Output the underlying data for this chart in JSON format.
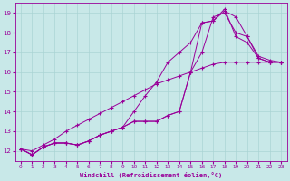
{
  "xlabel": "Windchill (Refroidissement éolien,°C)",
  "xlim": [
    -0.5,
    23.5
  ],
  "ylim": [
    11.5,
    19.5
  ],
  "xticks": [
    0,
    1,
    2,
    3,
    4,
    5,
    6,
    7,
    8,
    9,
    10,
    11,
    12,
    13,
    14,
    15,
    16,
    17,
    18,
    19,
    20,
    21,
    22,
    23
  ],
  "yticks": [
    12,
    13,
    14,
    15,
    16,
    17,
    18,
    19
  ],
  "bg_color": "#c8e8e8",
  "grid_color": "#aad4d4",
  "line_color": "#990099",
  "lines": [
    {
      "x": [
        0,
        1,
        2,
        3,
        4,
        5,
        6,
        7,
        8,
        9,
        10,
        11,
        12,
        13,
        14,
        15,
        16,
        17,
        18,
        19,
        20,
        21,
        22,
        23
      ],
      "y": [
        12.1,
        11.8,
        12.2,
        12.4,
        12.4,
        12.3,
        12.5,
        12.8,
        13.0,
        13.2,
        13.5,
        13.5,
        13.5,
        13.8,
        14.0,
        16.0,
        18.5,
        18.6,
        19.1,
        18.8,
        17.8,
        16.7,
        16.5,
        16.5
      ]
    },
    {
      "x": [
        0,
        1,
        2,
        3,
        4,
        5,
        6,
        7,
        8,
        9,
        10,
        11,
        12,
        13,
        14,
        15,
        16,
        17,
        18,
        19,
        20,
        21,
        22,
        23
      ],
      "y": [
        12.1,
        11.8,
        12.2,
        12.4,
        12.4,
        12.3,
        12.5,
        12.8,
        13.0,
        13.2,
        14.0,
        14.8,
        15.5,
        16.5,
        17.0,
        17.5,
        18.5,
        18.6,
        19.2,
        17.8,
        17.5,
        16.7,
        16.5,
        16.5
      ]
    },
    {
      "x": [
        0,
        1,
        2,
        3,
        4,
        5,
        6,
        7,
        8,
        9,
        10,
        11,
        12,
        13,
        14,
        15,
        16,
        17,
        18,
        19,
        20,
        21,
        22,
        23
      ],
      "y": [
        12.1,
        11.8,
        12.2,
        12.4,
        12.4,
        12.3,
        12.5,
        12.8,
        13.0,
        13.2,
        13.5,
        13.5,
        13.5,
        13.8,
        14.0,
        16.0,
        17.0,
        18.8,
        19.0,
        18.0,
        17.8,
        16.8,
        16.6,
        16.5
      ]
    },
    {
      "x": [
        0,
        1,
        2,
        3,
        4,
        5,
        6,
        7,
        8,
        9,
        10,
        11,
        12,
        13,
        14,
        15,
        16,
        17,
        18,
        19,
        20,
        21,
        22,
        23
      ],
      "y": [
        12.1,
        12.0,
        12.3,
        12.6,
        13.0,
        13.3,
        13.6,
        13.9,
        14.2,
        14.5,
        14.8,
        15.1,
        15.4,
        15.6,
        15.8,
        16.0,
        16.2,
        16.4,
        16.5,
        16.5,
        16.5,
        16.5,
        16.5,
        16.5
      ]
    }
  ]
}
